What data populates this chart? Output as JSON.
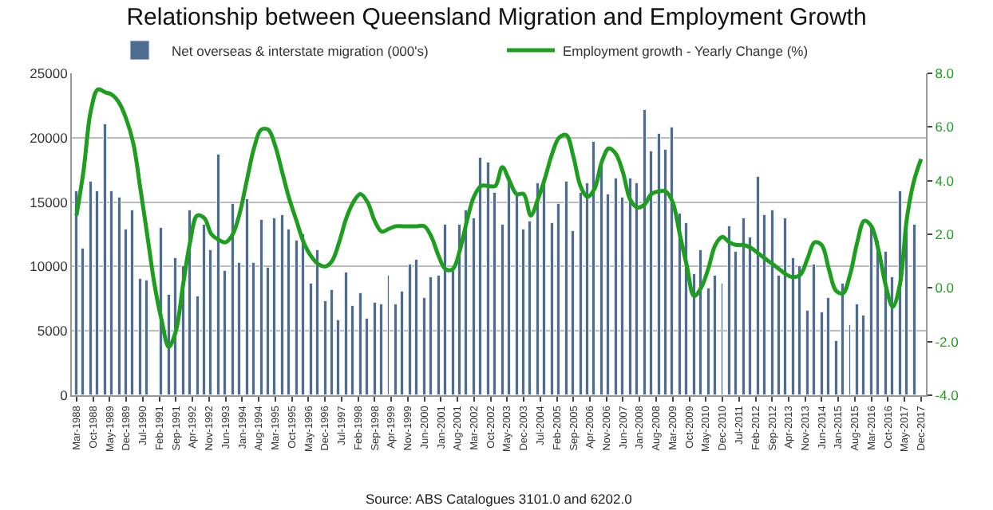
{
  "chart_data": {
    "type": "bar",
    "title": "Relationship between Queensland Migration and Employment Growth",
    "annotations": [
      "Source: ABS Catalogues 3101.0 and 6202.0"
    ],
    "x": [
      "1988-03",
      "1988-06",
      "1988-09",
      "1988-12",
      "1989-03",
      "1989-06",
      "1989-09",
      "1989-12",
      "1990-03",
      "1990-06",
      "1990-09",
      "1990-12",
      "1991-03",
      "1991-06",
      "1991-09",
      "1991-12",
      "1992-03",
      "1992-06",
      "1992-09",
      "1992-12",
      "1993-03",
      "1993-06",
      "1993-09",
      "1993-12",
      "1994-03",
      "1994-06",
      "1994-09",
      "1994-12",
      "1995-03",
      "1995-06",
      "1995-09",
      "1995-12",
      "1996-03",
      "1996-06",
      "1996-09",
      "1996-12",
      "1997-03",
      "1997-06",
      "1997-09",
      "1997-12",
      "1998-03",
      "1998-06",
      "1998-09",
      "1998-12",
      "1999-03",
      "1999-06",
      "1999-09",
      "1999-12",
      "2000-03",
      "2000-06",
      "2000-09",
      "2000-12",
      "2001-03",
      "2001-06",
      "2001-09",
      "2001-12",
      "2002-03",
      "2002-06",
      "2002-09",
      "2002-12",
      "2003-03",
      "2003-06",
      "2003-09",
      "2003-12",
      "2004-03",
      "2004-06",
      "2004-09",
      "2004-12",
      "2005-03",
      "2005-06",
      "2005-09",
      "2005-12",
      "2006-03",
      "2006-06",
      "2006-09",
      "2006-12",
      "2007-03",
      "2007-06",
      "2007-09",
      "2007-12",
      "2008-03",
      "2008-06",
      "2008-09",
      "2008-12",
      "2009-03",
      "2009-06",
      "2009-09",
      "2009-12",
      "2010-03",
      "2010-06",
      "2010-09",
      "2010-12",
      "2011-03",
      "2011-06",
      "2011-09",
      "2011-12",
      "2012-03",
      "2012-06",
      "2012-09",
      "2012-12",
      "2013-03",
      "2013-06",
      "2013-09",
      "2013-12",
      "2014-03",
      "2014-06",
      "2014-09",
      "2014-12",
      "2015-03",
      "2015-06",
      "2015-09",
      "2015-12",
      "2016-03",
      "2016-06",
      "2016-09",
      "2016-12",
      "2017-03",
      "2017-06",
      "2017-09",
      "2017-12"
    ],
    "series": [
      {
        "name": "Net overseas & interstate migration (000's)",
        "color": "#4f6b8d",
        "values": [
          15800,
          11400,
          16600,
          15800,
          21100,
          15800,
          15400,
          12900,
          14300,
          9000,
          8900,
          null,
          13000,
          7800,
          10700,
          10000,
          14400,
          7700,
          13200,
          11300,
          18700,
          9600,
          14800,
          10300,
          15200,
          10300,
          13600,
          9900,
          13800,
          14000,
          12900,
          12000,
          12500,
          8700,
          11300,
          7300,
          8200,
          5800,
          9500,
          6900,
          7900,
          5900,
          7200,
          7100,
          9300,
          7000,
          8100,
          10100,
          10500,
          7600,
          9100,
          9300,
          13200,
          9600,
          13200,
          14400,
          13800,
          18400,
          18100,
          15700,
          13200,
          16900,
          15500,
          12900,
          13500,
          16500,
          16800,
          13400,
          14800,
          16600,
          12800,
          15700,
          16500,
          19700,
          17800,
          15600,
          16800,
          15400,
          16800,
          16400,
          22200,
          18900,
          20300,
          19000,
          20800,
          14100,
          13400,
          9400,
          11300,
          8300,
          9300,
          8700,
          13100,
          11100,
          13700,
          12200,
          16900,
          14000,
          14300,
          9300,
          13800,
          10600,
          10000,
          6600,
          10200,
          6400,
          7600,
          4200,
          8700,
          5500,
          7100,
          6200,
          13100,
          12000,
          11200,
          9200,
          15900,
          12800,
          13300,
          null
        ]
      },
      {
        "name": "Employment growth - Yearly Change (%)",
        "type": "line",
        "axis": "y2",
        "color": "#1e9e1e",
        "values": [
          2.7,
          4.4,
          6.6,
          7.4,
          7.3,
          7.2,
          6.9,
          6.3,
          5.4,
          3.7,
          1.9,
          0.1,
          -1.2,
          -2.2,
          -1.6,
          0.1,
          1.7,
          2.7,
          2.6,
          2.0,
          1.8,
          1.7,
          2.0,
          2.8,
          4.0,
          5.2,
          5.9,
          5.9,
          5.3,
          4.3,
          3.3,
          2.5,
          1.7,
          1.2,
          0.9,
          0.8,
          1.0,
          1.7,
          2.6,
          3.2,
          3.5,
          3.2,
          2.5,
          2.1,
          2.2,
          2.3,
          2.3,
          2.3,
          2.3,
          2.3,
          1.9,
          1.2,
          0.7,
          0.7,
          1.4,
          2.5,
          3.4,
          3.8,
          3.8,
          3.8,
          4.5,
          4.0,
          3.5,
          3.5,
          2.7,
          3.3,
          4.1,
          5.0,
          5.6,
          5.7,
          4.9,
          3.8,
          3.4,
          3.7,
          4.7,
          5.2,
          5.0,
          4.3,
          3.3,
          3.0,
          3.1,
          3.5,
          3.6,
          3.6,
          3.2,
          2.0,
          0.8,
          -0.3,
          0.0,
          0.7,
          1.6,
          1.9,
          1.7,
          1.6,
          1.6,
          1.5,
          1.3,
          1.1,
          0.9,
          0.7,
          0.5,
          0.4,
          0.5,
          1.1,
          1.7,
          1.6,
          0.7,
          -0.1,
          -0.2,
          0.5,
          1.7,
          2.5,
          2.3,
          1.4,
          0.1,
          -0.7,
          0.1,
          2.6,
          4.0,
          4.8
        ]
      }
    ],
    "xlim": [
      "1988-01",
      "2018-02"
    ],
    "xticks": [
      {
        "value": "1988-03",
        "label": "Mar-1988"
      },
      {
        "value": "1988-10",
        "label": "Oct-1988"
      },
      {
        "value": "1989-05",
        "label": "May-1989"
      },
      {
        "value": "1989-12",
        "label": "Dec-1989"
      },
      {
        "value": "1990-07",
        "label": "Jul-1990"
      },
      {
        "value": "1991-02",
        "label": "Feb-1991"
      },
      {
        "value": "1991-09",
        "label": "Sep-1991"
      },
      {
        "value": "1992-04",
        "label": "Apr-1992"
      },
      {
        "value": "1992-11",
        "label": "Nov-1992"
      },
      {
        "value": "1993-06",
        "label": "Jun-1993"
      },
      {
        "value": "1994-01",
        "label": "Jan-1994"
      },
      {
        "value": "1994-08",
        "label": "Aug-1994"
      },
      {
        "value": "1995-03",
        "label": "Mar-1995"
      },
      {
        "value": "1995-10",
        "label": "Oct-1995"
      },
      {
        "value": "1996-05",
        "label": "May-1996"
      },
      {
        "value": "1996-12",
        "label": "Dec-1996"
      },
      {
        "value": "1997-07",
        "label": "Jul-1997"
      },
      {
        "value": "1998-02",
        "label": "Feb-1998"
      },
      {
        "value": "1998-09",
        "label": "Sep-1998"
      },
      {
        "value": "1999-04",
        "label": "Apr-1999"
      },
      {
        "value": "1999-11",
        "label": "Nov-1999"
      },
      {
        "value": "2000-06",
        "label": "Jun-2000"
      },
      {
        "value": "2001-01",
        "label": "Jan-2001"
      },
      {
        "value": "2001-08",
        "label": "Aug-2001"
      },
      {
        "value": "2002-03",
        "label": "Mar-2002"
      },
      {
        "value": "2002-10",
        "label": "Oct-2002"
      },
      {
        "value": "2003-05",
        "label": "May-2003"
      },
      {
        "value": "2003-12",
        "label": "Dec-2003"
      },
      {
        "value": "2004-07",
        "label": "Jul-2004"
      },
      {
        "value": "2005-02",
        "label": "Feb-2005"
      },
      {
        "value": "2005-09",
        "label": "Sep-2005"
      },
      {
        "value": "2006-04",
        "label": "Apr-2006"
      },
      {
        "value": "2006-11",
        "label": "Nov-2006"
      },
      {
        "value": "2007-06",
        "label": "Jun-2007"
      },
      {
        "value": "2008-01",
        "label": "Jan-2008"
      },
      {
        "value": "2008-08",
        "label": "Aug-2008"
      },
      {
        "value": "2009-03",
        "label": "Mar-2009"
      },
      {
        "value": "2009-10",
        "label": "Oct-2009"
      },
      {
        "value": "2010-05",
        "label": "May-2010"
      },
      {
        "value": "2010-12",
        "label": "Dec-2010"
      },
      {
        "value": "2011-07",
        "label": "Jul-2011"
      },
      {
        "value": "2012-02",
        "label": "Feb-2012"
      },
      {
        "value": "2012-09",
        "label": "Sep-2012"
      },
      {
        "value": "2013-04",
        "label": "Apr-2013"
      },
      {
        "value": "2013-11",
        "label": "Nov-2013"
      },
      {
        "value": "2014-06",
        "label": "Jun-2014"
      },
      {
        "value": "2015-01",
        "label": "Jan-2015"
      },
      {
        "value": "2015-08",
        "label": "Aug-2015"
      },
      {
        "value": "2016-03",
        "label": "Mar-2016"
      },
      {
        "value": "2016-10",
        "label": "Oct-2016"
      },
      {
        "value": "2017-05",
        "label": "May-2017"
      },
      {
        "value": "2017-12",
        "label": "Dec-2017"
      }
    ],
    "ylim": [
      0,
      25000
    ],
    "yticks": [
      0,
      5000,
      10000,
      15000,
      20000,
      25000
    ],
    "y2lim": [
      -4,
      8
    ],
    "y2ticks": [
      {
        "value": -4,
        "label": "-4.0"
      },
      {
        "value": -2,
        "label": "-2.0"
      },
      {
        "value": 0,
        "label": "0.0"
      },
      {
        "value": 2,
        "label": "2.0"
      },
      {
        "value": 4,
        "label": "4.0"
      },
      {
        "value": 6,
        "label": "6.0"
      },
      {
        "value": 8,
        "label": "8.0"
      }
    ],
    "grid": "y",
    "legend": "top",
    "marker": "none",
    "line_style": "solid"
  }
}
